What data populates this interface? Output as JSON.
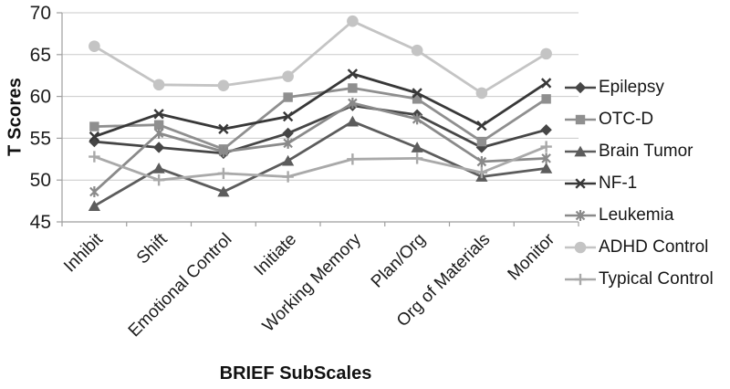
{
  "chart_data": {
    "type": "line",
    "title": "",
    "xlabel": "BRIEF SubScales",
    "ylabel": "T Scores",
    "ylim": [
      45,
      70
    ],
    "yticks": [
      45,
      50,
      55,
      60,
      65,
      70
    ],
    "grid": true,
    "legend_position": "right",
    "categories": [
      "Inhibit",
      "Shift",
      "Emotional Control",
      "Initiate",
      "Working Memory",
      "Plan/Org",
      "Org of Materials",
      "Monitor"
    ],
    "series": [
      {
        "name": "Epilepsy",
        "marker": "diamond",
        "color": "#464646",
        "values": [
          54.6,
          53.9,
          53.2,
          55.6,
          58.9,
          57.8,
          53.9,
          56.0
        ]
      },
      {
        "name": "OTC-D",
        "marker": "square",
        "color": "#8f8f8f",
        "values": [
          56.4,
          56.6,
          53.7,
          59.9,
          61.0,
          59.7,
          54.6,
          59.7
        ]
      },
      {
        "name": "Brain Tumor",
        "marker": "triangle",
        "color": "#5c5c5c",
        "values": [
          46.9,
          51.4,
          48.6,
          52.3,
          57.0,
          53.9,
          50.4,
          51.4
        ]
      },
      {
        "name": "NF-1",
        "marker": "x",
        "color": "#383838",
        "values": [
          55.2,
          57.9,
          56.1,
          57.6,
          62.7,
          60.4,
          56.5,
          61.6
        ]
      },
      {
        "name": "Leukemia",
        "marker": "asterisk",
        "color": "#8a8a8a",
        "values": [
          48.6,
          55.6,
          53.4,
          54.4,
          59.2,
          57.3,
          52.2,
          52.6
        ]
      },
      {
        "name": "ADHD Control",
        "marker": "circle",
        "color": "#c4c4c4",
        "values": [
          66.0,
          61.4,
          61.3,
          62.4,
          69.0,
          65.5,
          60.4,
          65.1
        ]
      },
      {
        "name": "Typical Control",
        "marker": "plus",
        "color": "#a9a9a9",
        "values": [
          52.8,
          50.0,
          50.8,
          50.4,
          52.5,
          52.6,
          50.9,
          54.0
        ]
      }
    ],
    "colors": {
      "grid": "#c9c9c9",
      "axis": "#9e9e9e",
      "text": "#1c1c1c"
    }
  }
}
